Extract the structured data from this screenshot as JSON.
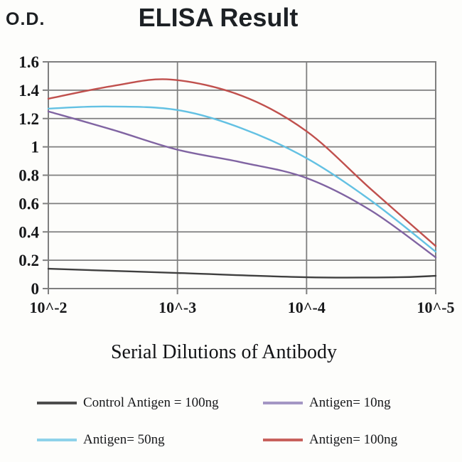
{
  "header": {
    "od_label": "O.D.",
    "title": "ELISA Result"
  },
  "chart_data": {
    "type": "line",
    "title": "ELISA Result",
    "y_axis_label": "O.D.",
    "x_axis_label": "Serial Dilutions of Antibody",
    "x_tick_labels": [
      "10^-2",
      "10^-3",
      "10^-4",
      "10^-5"
    ],
    "y_tick_labels": [
      "0",
      "0.2",
      "0.4",
      "0.6",
      "0.8",
      "1",
      "1.2",
      "1.4",
      "1.6"
    ],
    "ylim": [
      0,
      1.6
    ],
    "grid": true,
    "legend_position": "bottom",
    "axis_color": "#7f7f7f",
    "series": [
      {
        "name": "Control Antigen = 100ng",
        "color": "#3f3f3f",
        "x": [
          0,
          1,
          2,
          2.7,
          3
        ],
        "values": [
          0.14,
          0.11,
          0.08,
          0.08,
          0.09
        ]
      },
      {
        "name": "Antigen= 10ng",
        "color": "#8064a2",
        "x": [
          0,
          0.5,
          1,
          1.5,
          2,
          2.5,
          3
        ],
        "values": [
          1.25,
          1.12,
          0.98,
          0.89,
          0.78,
          0.55,
          0.22
        ]
      },
      {
        "name": "Antigen= 50ng",
        "color": "#63c1e3",
        "x": [
          0,
          0.45,
          1,
          1.5,
          2,
          2.5,
          3
        ],
        "values": [
          1.27,
          1.285,
          1.26,
          1.13,
          0.92,
          0.62,
          0.26
        ]
      },
      {
        "name": "Antigen= 100ng",
        "color": "#c0504d",
        "x": [
          0,
          0.5,
          0.95,
          1.5,
          2,
          2.5,
          3
        ],
        "values": [
          1.34,
          1.43,
          1.475,
          1.36,
          1.11,
          0.7,
          0.3
        ]
      }
    ]
  },
  "legend": {
    "items": [
      {
        "label": "Control Antigen = 100ng",
        "color": "#4d4d4d"
      },
      {
        "label": "Antigen= 10ng",
        "color": "#a496c4"
      },
      {
        "label": "Antigen= 50ng",
        "color": "#8ed2ea"
      },
      {
        "label": "Antigen= 100ng",
        "color": "#c8615c"
      }
    ]
  }
}
